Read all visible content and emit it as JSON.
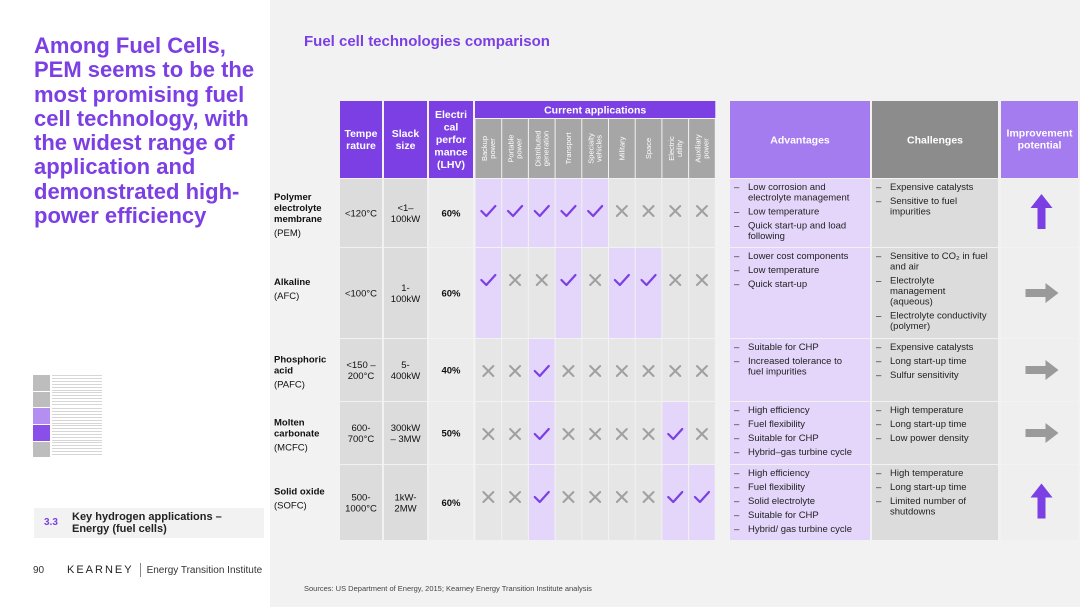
{
  "headline": "Among Fuel Cells, PEM seems to be the most promising fuel cell technology, with the widest range of application and demonstrated high-power efficiency",
  "section": {
    "number": "3.3",
    "title": "Key hydrogen applications – Energy (fuel cells)"
  },
  "footer": {
    "page": "90",
    "brand": "KEARNEY",
    "institute": "Energy Transition Institute"
  },
  "chart_title": "Fuel cell technologies comparison",
  "sources": "Sources: US Department of Energy, 2015; Kearney Energy Transition Institute analysis",
  "headers": {
    "temperature": [
      "Tempe",
      "rature"
    ],
    "stack": [
      "Slack",
      "size"
    ],
    "perf": [
      "Electri",
      "cal",
      "perfor",
      "mance",
      "(LHV)"
    ],
    "apps_group": "Current applications",
    "advantages": "Advantages",
    "challenges": "Challenges",
    "improvement": [
      "Improvement",
      "potential"
    ]
  },
  "applications": [
    [
      "Backup",
      "power"
    ],
    [
      "Portable",
      "power"
    ],
    [
      "Distributed",
      "generation"
    ],
    [
      "Transport"
    ],
    [
      "Specialty",
      "vehicles"
    ],
    [
      "Military"
    ],
    [
      "Space"
    ],
    [
      "Electric",
      "utility"
    ],
    [
      "Auxiliary",
      "power"
    ]
  ],
  "rows": [
    {
      "name": [
        "Polymer",
        "electrolyte",
        "membrane"
      ],
      "abbr": "(PEM)",
      "temp": [
        "<120°C"
      ],
      "stack": [
        "<1–",
        "100kW"
      ],
      "perf": "60%",
      "apps": [
        true,
        true,
        true,
        true,
        true,
        false,
        false,
        false,
        false
      ],
      "advantages": [
        [
          "Low corrosion and",
          "electrolyte management"
        ],
        [
          "Low temperature"
        ],
        [
          "Quick start-up and load",
          "following"
        ]
      ],
      "challenges": [
        [
          "Expensive catalysts"
        ],
        [
          "Sensitive to fuel",
          "impurities"
        ]
      ],
      "improvement": "up"
    },
    {
      "name": [
        "Alkaline"
      ],
      "abbr": "(AFC)",
      "temp": [
        "<100°C"
      ],
      "stack": [
        "1-",
        "100kW"
      ],
      "perf": "60%",
      "apps": [
        true,
        false,
        false,
        true,
        false,
        true,
        true,
        false,
        false
      ],
      "advantages": [
        [
          "Lower cost components"
        ],
        [
          "Low temperature"
        ],
        [
          "Quick start-up"
        ]
      ],
      "challenges": [
        [
          "Sensitive to CO₂ in fuel",
          "and air"
        ],
        [
          "Electrolyte",
          "management",
          "(aqueous)"
        ],
        [
          "Electrolyte conductivity",
          "(polymer)"
        ]
      ],
      "improvement": "right"
    },
    {
      "name": [
        "Phosphoric",
        "acid"
      ],
      "abbr": "(PAFC)",
      "temp": [
        "<150 –",
        "200°C"
      ],
      "stack": [
        "5-",
        "400kW"
      ],
      "perf": "40%",
      "apps": [
        false,
        false,
        true,
        false,
        false,
        false,
        false,
        false,
        false
      ],
      "advantages": [
        [
          "Suitable for CHP"
        ],
        [
          "Increased tolerance to",
          "fuel impurities"
        ]
      ],
      "challenges": [
        [
          "Expensive catalysts"
        ],
        [
          "Long start-up time"
        ],
        [
          "Sulfur sensitivity"
        ]
      ],
      "improvement": "right"
    },
    {
      "name": [
        "Molten",
        "carbonate"
      ],
      "abbr": "(MCFC)",
      "temp": [
        "600-",
        "700°C"
      ],
      "stack": [
        "300kW",
        "– 3MW"
      ],
      "perf": "50%",
      "apps": [
        false,
        false,
        true,
        false,
        false,
        false,
        false,
        true,
        false
      ],
      "advantages": [
        [
          "High efficiency"
        ],
        [
          "Fuel flexibility"
        ],
        [
          "Suitable for CHP"
        ],
        [
          "Hybrid–gas turbine cycle"
        ]
      ],
      "challenges": [
        [
          "High temperature"
        ],
        [
          "Long start-up time"
        ],
        [
          "Low power density"
        ]
      ],
      "improvement": "right"
    },
    {
      "name": [
        "Solid oxide"
      ],
      "abbr": "(SOFC)",
      "temp": [
        "500-",
        "1000°C"
      ],
      "stack": [
        "1kW-",
        "2MW"
      ],
      "perf": "60%",
      "apps": [
        false,
        false,
        true,
        false,
        false,
        false,
        false,
        true,
        true
      ],
      "advantages": [
        [
          "High efficiency"
        ],
        [
          "Fuel flexibility"
        ],
        [
          "Solid electrolyte"
        ],
        [
          "Suitable for CHP"
        ],
        [
          "Hybrid/ gas turbine cycle"
        ]
      ],
      "challenges": [
        [
          "High temperature"
        ],
        [
          "Long start-up time"
        ],
        [
          "Limited number of",
          "shutdowns"
        ]
      ],
      "improvement": "up"
    }
  ],
  "colors": {
    "purple_dark": "#7b3fe4",
    "purple_mid": "#a57bf0",
    "purple_light": "#e4d6fb",
    "grey_dark": "#8c8c8c",
    "grey_header": "#a6a6a6",
    "grey_cell": "#dcdcdc",
    "check": "#7b3fe4",
    "cross": "#a0a0a0",
    "arrow_grey": "#9a9a9a"
  }
}
